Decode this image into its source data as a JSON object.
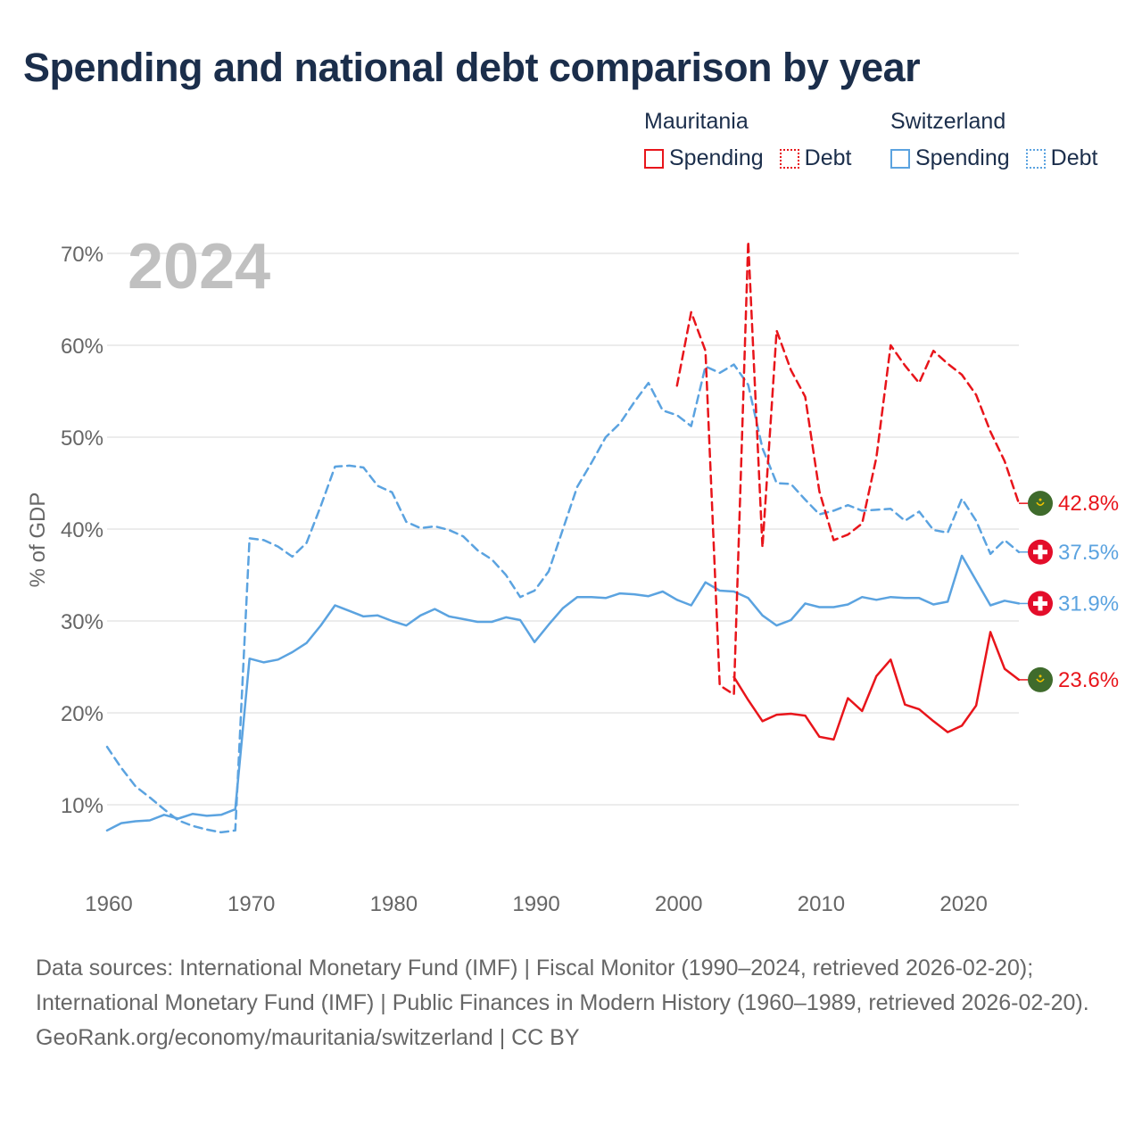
{
  "title": "Spending and national debt comparison by year",
  "legend": {
    "groups": [
      {
        "name": "Mauritania",
        "items": [
          "Spending",
          "Debt"
        ]
      },
      {
        "name": "Switzerland",
        "items": [
          "Spending",
          "Debt"
        ]
      }
    ]
  },
  "colors": {
    "mauritania": "#e8151b",
    "switzerland": "#5ba3e0",
    "grid": "#e6e6e6",
    "year_watermark": "#c0c0c0"
  },
  "year_label": "2024",
  "end_labels": [
    {
      "series": "Mauritania Debt",
      "text": "42.8%",
      "flag": "mauritania-flag-icon"
    },
    {
      "series": "Switzerland Debt",
      "text": "37.5%",
      "flag": "switzerland-flag-icon"
    },
    {
      "series": "Switzerland Spending",
      "text": "31.9%",
      "flag": "switzerland-flag-icon"
    },
    {
      "series": "Mauritania Spending",
      "text": "23.6%",
      "flag": "mauritania-flag-icon"
    }
  ],
  "chart_data": {
    "type": "line",
    "title": "Spending and national debt comparison by year",
    "xlabel": "",
    "ylabel": "% of GDP",
    "xlim": [
      1960,
      2024
    ],
    "ylim": [
      3,
      72
    ],
    "x_ticks": [
      1960,
      1970,
      1980,
      1990,
      2000,
      2010,
      2020
    ],
    "x_tick_labels": [
      "1960",
      "1970",
      "1980",
      "1990",
      "2000",
      "2010",
      "2020"
    ],
    "y_ticks": [
      10,
      20,
      30,
      40,
      50,
      60,
      70
    ],
    "y_tick_labels": [
      "10%",
      "20%",
      "30%",
      "40%",
      "50%",
      "60%",
      "70%"
    ],
    "grid": true,
    "series": [
      {
        "name": "Switzerland Spending",
        "country": "Switzerland",
        "style": "solid",
        "x": [
          1960,
          1961,
          1962,
          1963,
          1964,
          1965,
          1966,
          1967,
          1968,
          1969,
          1970,
          1971,
          1972,
          1973,
          1974,
          1975,
          1976,
          1977,
          1978,
          1979,
          1980,
          1981,
          1982,
          1983,
          1984,
          1985,
          1986,
          1987,
          1988,
          1989,
          1990,
          1991,
          1992,
          1993,
          1994,
          1995,
          1996,
          1997,
          1998,
          1999,
          2000,
          2001,
          2002,
          2003,
          2004,
          2005,
          2006,
          2007,
          2008,
          2009,
          2010,
          2011,
          2012,
          2013,
          2014,
          2015,
          2016,
          2017,
          2018,
          2019,
          2020,
          2021,
          2022,
          2023,
          2024
        ],
        "values": [
          7.2,
          8.0,
          8.2,
          8.3,
          8.9,
          8.5,
          9.0,
          8.8,
          8.9,
          9.5,
          25.9,
          25.5,
          25.8,
          26.6,
          27.6,
          29.5,
          31.7,
          31.1,
          30.5,
          30.6,
          30.0,
          29.5,
          30.6,
          31.3,
          30.5,
          30.2,
          29.9,
          29.9,
          30.4,
          30.1,
          27.7,
          29.6,
          31.4,
          32.6,
          32.6,
          32.5,
          33.0,
          32.9,
          32.7,
          33.2,
          32.3,
          31.7,
          34.2,
          33.3,
          33.2,
          32.5,
          30.6,
          29.5,
          30.1,
          31.9,
          31.5,
          31.5,
          31.8,
          32.6,
          32.3,
          32.6,
          32.5,
          32.5,
          31.8,
          32.1,
          37.1,
          34.4,
          31.7,
          32.2,
          31.9
        ]
      },
      {
        "name": "Switzerland Debt",
        "country": "Switzerland",
        "style": "dashed",
        "x": [
          1960,
          1961,
          1962,
          1963,
          1964,
          1965,
          1966,
          1967,
          1968,
          1969,
          1970,
          1971,
          1972,
          1973,
          1974,
          1975,
          1976,
          1977,
          1978,
          1979,
          1980,
          1981,
          1982,
          1983,
          1984,
          1985,
          1986,
          1987,
          1988,
          1989,
          1990,
          1991,
          1992,
          1993,
          1994,
          1995,
          1996,
          1997,
          1998,
          1999,
          2000,
          2001,
          2002,
          2003,
          2004,
          2005,
          2006,
          2007,
          2008,
          2009,
          2010,
          2011,
          2012,
          2013,
          2014,
          2015,
          2016,
          2017,
          2018,
          2019,
          2020,
          2021,
          2022,
          2023,
          2024
        ],
        "values": [
          16.3,
          14.0,
          12.0,
          10.8,
          9.5,
          8.3,
          7.7,
          7.3,
          7.0,
          7.2,
          39.0,
          38.8,
          38.1,
          37.0,
          38.5,
          42.5,
          46.8,
          46.9,
          46.7,
          44.7,
          44.0,
          40.8,
          40.1,
          40.3,
          39.9,
          39.2,
          37.7,
          36.7,
          35.0,
          32.6,
          33.3,
          35.4,
          40.0,
          44.6,
          47.2,
          50.0,
          51.5,
          53.8,
          55.9,
          52.9,
          52.4,
          51.2,
          57.7,
          57.0,
          57.9,
          55.7,
          48.8,
          45.0,
          44.9,
          43.2,
          41.6,
          42.0,
          42.6,
          42.0,
          42.1,
          42.2,
          40.9,
          41.9,
          39.9,
          39.6,
          43.3,
          40.9,
          37.3,
          38.8,
          37.5
        ]
      },
      {
        "name": "Mauritania Spending",
        "country": "Mauritania",
        "style": "solid",
        "x": [
          2004,
          2005,
          2006,
          2007,
          2008,
          2009,
          2010,
          2011,
          2012,
          2013,
          2014,
          2015,
          2016,
          2017,
          2018,
          2019,
          2020,
          2021,
          2022,
          2023,
          2024
        ],
        "values": [
          23.9,
          21.4,
          19.1,
          19.8,
          19.9,
          19.7,
          17.4,
          17.1,
          21.6,
          20.2,
          24.0,
          25.8,
          20.9,
          20.4,
          19.1,
          17.9,
          18.6,
          20.8,
          28.8,
          24.8,
          23.6
        ]
      },
      {
        "name": "Mauritania Debt",
        "country": "Mauritania",
        "style": "dashed",
        "x": [
          2000,
          2001,
          2002,
          2003,
          2004,
          2005,
          2006,
          2007,
          2008,
          2009,
          2010,
          2011,
          2012,
          2013,
          2014,
          2015,
          2016,
          2017,
          2018,
          2019,
          2020,
          2021,
          2022,
          2023,
          2024
        ],
        "values": [
          55.6,
          63.6,
          59.4,
          23.0,
          22.0,
          71.3,
          38.0,
          61.6,
          57.3,
          54.4,
          44.1,
          38.8,
          39.4,
          40.6,
          47.8,
          60.0,
          57.8,
          55.9,
          59.4,
          58.0,
          56.8,
          54.6,
          50.6,
          47.4,
          42.8
        ]
      }
    ]
  },
  "source": {
    "line1": "Data sources: International Monetary Fund (IMF) | Fiscal Monitor (1990–2024, retrieved 2026-02-20); International Monetary Fund (IMF) | Public Finances in Modern History (1960–1989, retrieved 2026-02-20).",
    "line2": "GeoRank.org/economy/mauritania/switzerland | CC BY"
  }
}
